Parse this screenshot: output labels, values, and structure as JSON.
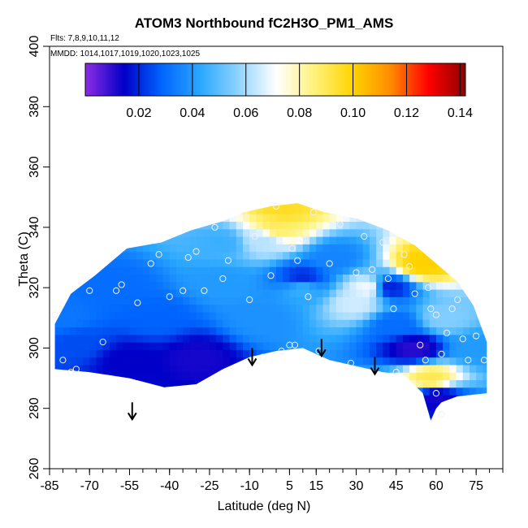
{
  "chart_data": {
    "type": "heatmap",
    "title": "ATOM3 Northbound fC2H3O_PM1_AMS",
    "notes": {
      "flights": "Flts: 7,8,9,10,11,12",
      "dates": "MMDD: 1014,1017,1019,1020,1023,1025"
    },
    "xlabel": "Latitude (deg N)",
    "ylabel": "Theta (C)",
    "xlim": [
      -85,
      85
    ],
    "ylim": [
      260,
      400
    ],
    "xticks": [
      -85,
      -70,
      -55,
      -40,
      -25,
      -10,
      5,
      15,
      30,
      45,
      60,
      75
    ],
    "xtick_labels": [
      "-85",
      "-70",
      "-55",
      "-40",
      "-25",
      "-10",
      "5",
      "15",
      "30",
      "45",
      "60",
      "75"
    ],
    "yticks": [
      260,
      280,
      300,
      320,
      340,
      360,
      380,
      400
    ],
    "ytick_labels": [
      "260",
      "280",
      "300",
      "320",
      "340",
      "360",
      "380",
      "400"
    ],
    "colorbar": {
      "range": [
        0,
        0.142
      ],
      "ticks": [
        0.02,
        0.04,
        0.06,
        0.08,
        0.1,
        0.12,
        0.14
      ],
      "tick_labels": [
        "0.02",
        "0.04",
        "0.06",
        "0.08",
        "0.10",
        "0.12",
        "0.14"
      ],
      "stops": [
        "#8a2be2",
        "#0000c8",
        "#0066ff",
        "#2aa7ff",
        "#8fd3ff",
        "#ffffff",
        "#fff27a",
        "#ffd400",
        "#ff8c00",
        "#ff0000",
        "#8b0000"
      ]
    },
    "domain_outline": [
      [
        -83,
        293
      ],
      [
        -83,
        308
      ],
      [
        -77,
        318
      ],
      [
        -68,
        324
      ],
      [
        -56,
        333
      ],
      [
        -43,
        335
      ],
      [
        -32,
        339
      ],
      [
        -20,
        342
      ],
      [
        -12,
        345
      ],
      [
        -2,
        347
      ],
      [
        8,
        348
      ],
      [
        18,
        345
      ],
      [
        30,
        343
      ],
      [
        42,
        339
      ],
      [
        52,
        334
      ],
      [
        60,
        328
      ],
      [
        68,
        322
      ],
      [
        74,
        314
      ],
      [
        79,
        302
      ],
      [
        79,
        285
      ],
      [
        68,
        284
      ],
      [
        62,
        282
      ],
      [
        60,
        280
      ],
      [
        58,
        276
      ],
      [
        55,
        285
      ],
      [
        48,
        291
      ],
      [
        40,
        292
      ],
      [
        30,
        294
      ],
      [
        20,
        296
      ],
      [
        10,
        300
      ],
      [
        0,
        299
      ],
      [
        -10,
        297
      ],
      [
        -20,
        293
      ],
      [
        -30,
        288
      ],
      [
        -42,
        287
      ],
      [
        -55,
        290
      ],
      [
        -70,
        292
      ],
      [
        -83,
        293
      ]
    ],
    "features": [
      {
        "lat": -30,
        "theta": 297,
        "value": 0.012
      },
      {
        "lat": -55,
        "theta": 296,
        "value": 0.014
      },
      {
        "lat": -75,
        "theta": 302,
        "value": 0.025
      },
      {
        "lat": -60,
        "theta": 320,
        "value": 0.03
      },
      {
        "lat": -45,
        "theta": 310,
        "value": 0.028
      },
      {
        "lat": -20,
        "theta": 322,
        "value": 0.04
      },
      {
        "lat": -5,
        "theta": 310,
        "value": 0.038
      },
      {
        "lat": 10,
        "theta": 320,
        "value": 0.045
      },
      {
        "lat": -5,
        "theta": 336,
        "value": 0.062
      },
      {
        "lat": 0,
        "theta": 340,
        "value": 0.088
      },
      {
        "lat": 2,
        "theta": 346,
        "value": 0.095
      },
      {
        "lat": 10,
        "theta": 323,
        "value": 0.02
      },
      {
        "lat": 22,
        "theta": 330,
        "value": 0.035
      },
      {
        "lat": 30,
        "theta": 315,
        "value": 0.065
      },
      {
        "lat": 35,
        "theta": 320,
        "value": 0.07
      },
      {
        "lat": 42,
        "theta": 320,
        "value": 0.018
      },
      {
        "lat": 45,
        "theta": 308,
        "value": 0.03
      },
      {
        "lat": 52,
        "theta": 300,
        "value": 0.01
      },
      {
        "lat": 55,
        "theta": 328,
        "value": 0.1
      },
      {
        "lat": 63,
        "theta": 310,
        "value": 0.055
      },
      {
        "lat": 58,
        "theta": 290,
        "value": 0.09
      },
      {
        "lat": 60,
        "theta": 284,
        "value": 0.012
      },
      {
        "lat": 75,
        "theta": 300,
        "value": 0.04
      },
      {
        "lat": -80,
        "theta": 310,
        "value": 0.032
      },
      {
        "lat": -20,
        "theta": 335,
        "value": 0.045
      }
    ],
    "observations": [
      [
        -83,
        311
      ],
      [
        -80,
        296
      ],
      [
        -77,
        292
      ],
      [
        -75,
        293
      ],
      [
        -70,
        319
      ],
      [
        -65,
        302
      ],
      [
        -60,
        319
      ],
      [
        -58,
        321
      ],
      [
        -52,
        315
      ],
      [
        -47,
        328
      ],
      [
        -44,
        331
      ],
      [
        -40,
        317
      ],
      [
        -35,
        319
      ],
      [
        -33,
        330
      ],
      [
        -30,
        332
      ],
      [
        -27,
        319
      ],
      [
        -23,
        340
      ],
      [
        -20,
        323
      ],
      [
        -18,
        329
      ],
      [
        -12,
        344
      ],
      [
        -10,
        316
      ],
      [
        -8,
        337
      ],
      [
        -5,
        297
      ],
      [
        -2,
        324
      ],
      [
        0,
        347
      ],
      [
        2,
        299
      ],
      [
        5,
        301
      ],
      [
        6,
        333
      ],
      [
        7,
        301
      ],
      [
        8,
        329
      ],
      [
        10,
        336
      ],
      [
        12,
        317
      ],
      [
        14,
        345
      ],
      [
        16,
        299
      ],
      [
        20,
        328
      ],
      [
        24,
        341
      ],
      [
        28,
        295
      ],
      [
        30,
        325
      ],
      [
        33,
        337
      ],
      [
        36,
        326
      ],
      [
        40,
        335
      ],
      [
        42,
        323
      ],
      [
        44,
        313
      ],
      [
        45,
        292
      ],
      [
        48,
        331
      ],
      [
        50,
        327
      ],
      [
        52,
        318
      ],
      [
        54,
        301
      ],
      [
        56,
        296
      ],
      [
        57,
        320
      ],
      [
        58,
        313
      ],
      [
        60,
        311
      ],
      [
        62,
        298
      ],
      [
        64,
        305
      ],
      [
        66,
        313
      ],
      [
        68,
        316
      ],
      [
        70,
        303
      ],
      [
        72,
        296
      ],
      [
        75,
        304
      ],
      [
        78,
        296
      ],
      [
        60,
        285
      ],
      [
        62,
        278
      ]
    ],
    "arrows": [
      {
        "lat": -54,
        "theta": 282
      },
      {
        "lat": -9,
        "theta": 300
      },
      {
        "lat": 17,
        "theta": 303
      },
      {
        "lat": 37,
        "theta": 297
      }
    ]
  }
}
